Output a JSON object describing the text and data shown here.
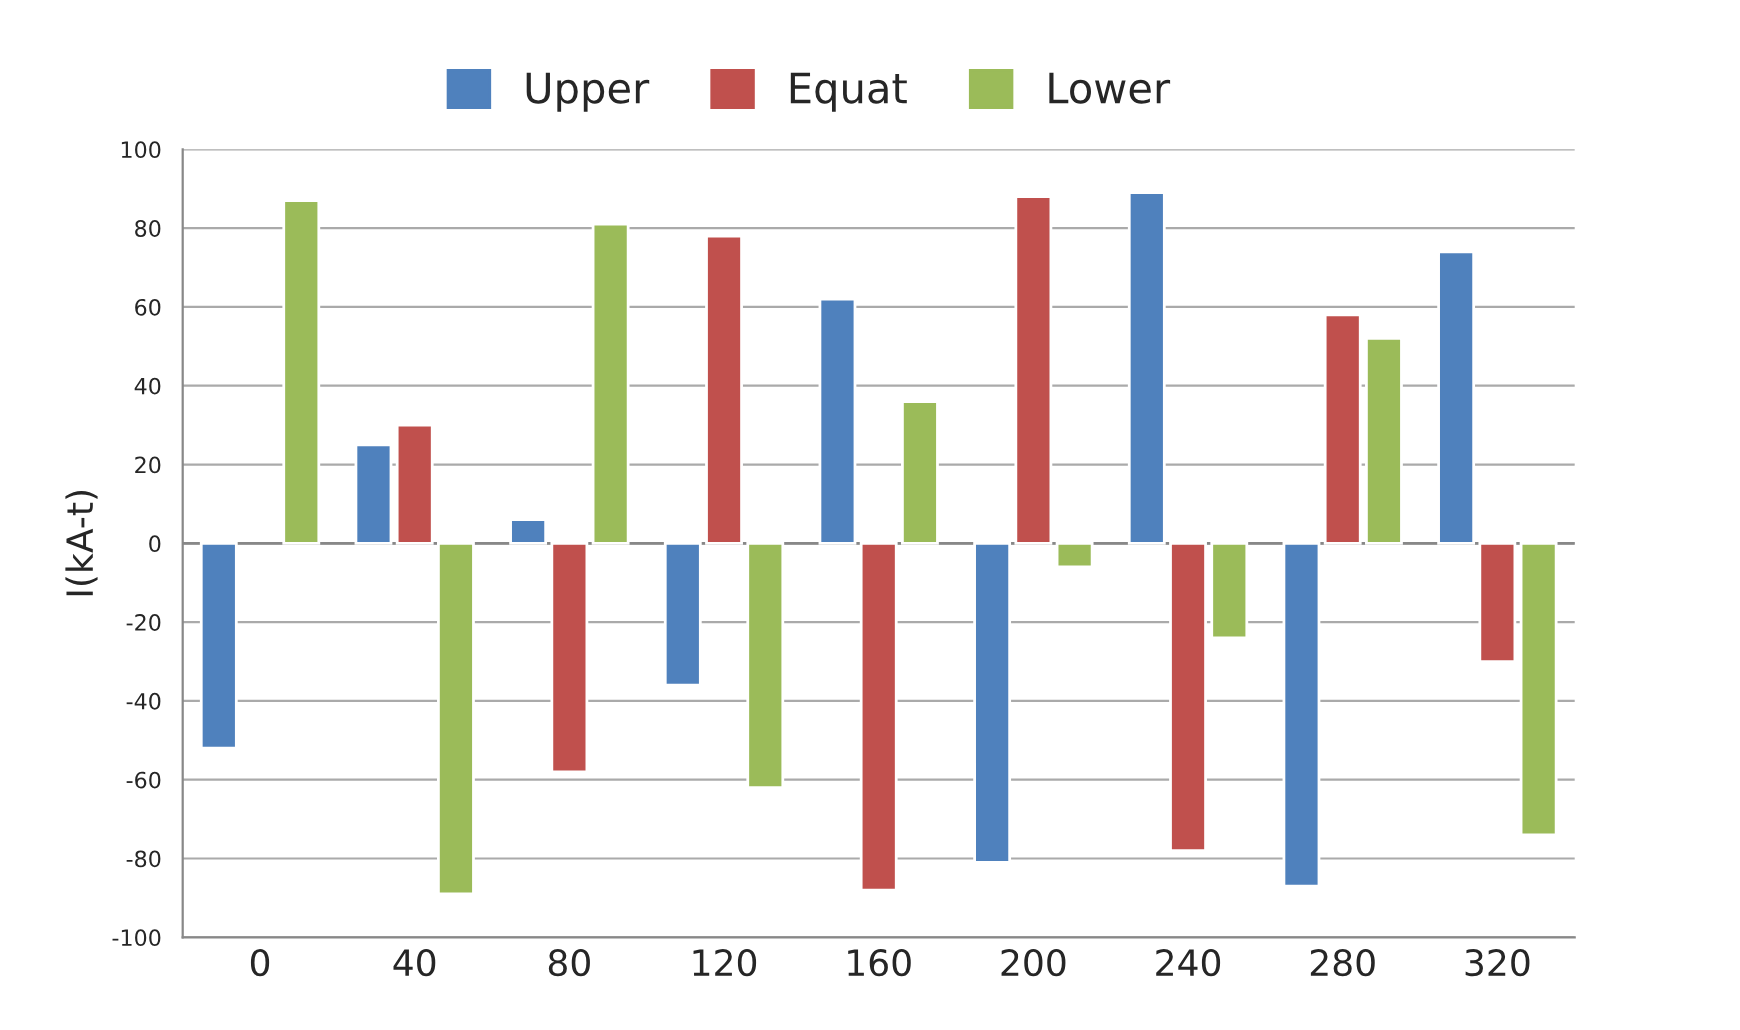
{
  "chart_data": {
    "type": "bar",
    "ylabel": "I(kA-t)",
    "categories": [
      "0",
      "40",
      "80",
      "120",
      "160",
      "200",
      "240",
      "280",
      "320"
    ],
    "series": [
      {
        "name": "Upper",
        "color": "#4f81bd",
        "values": [
          -52,
          25,
          6,
          -36,
          62,
          -81,
          89,
          -87,
          74
        ]
      },
      {
        "name": "Equat",
        "color": "#c0504d",
        "values": [
          null,
          30,
          -58,
          78,
          -88,
          88,
          -78,
          58,
          -30
        ]
      },
      {
        "name": "Lower",
        "color": "#9bbb59",
        "values": [
          87,
          -89,
          81,
          -62,
          36,
          -6,
          -24,
          52,
          -74
        ]
      }
    ],
    "ylim": [
      -100,
      100
    ],
    "yticks": [
      -100,
      -80,
      -60,
      -40,
      -20,
      0,
      20,
      40,
      60,
      80,
      100
    ],
    "grid": "y",
    "legend": "top"
  }
}
